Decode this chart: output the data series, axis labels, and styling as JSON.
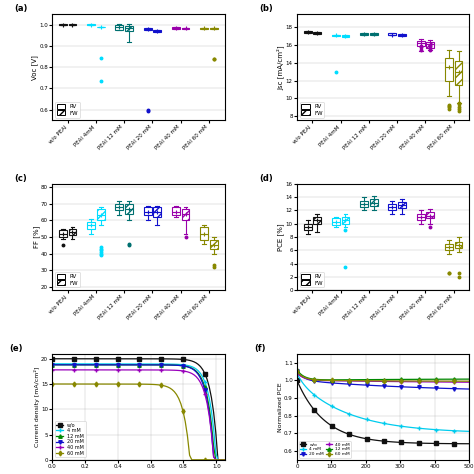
{
  "categories": [
    "w/o PEAI",
    "PEAI 4mM",
    "PEAI 12 mM",
    "PEAI 20 mM",
    "PEAI 40 mM",
    "PEAI 60 mM"
  ],
  "colors": [
    "#111111",
    "#00DDFF",
    "#007070",
    "#1111CC",
    "#9900AA",
    "#888800"
  ],
  "voc": {
    "ylabel": "Voc [V]",
    "ylim": [
      0.55,
      1.05
    ],
    "yticks": [
      0.6,
      0.7,
      0.8,
      0.9,
      1.0
    ],
    "rv_medians": [
      1.0,
      1.0,
      0.99,
      0.98,
      0.985,
      0.984
    ],
    "rv_q1": [
      0.998,
      0.998,
      0.975,
      0.975,
      0.982,
      0.982
    ],
    "rv_q3": [
      1.002,
      1.002,
      1.0,
      0.985,
      0.988,
      0.986
    ],
    "rv_whislo": [
      0.998,
      0.998,
      0.975,
      0.975,
      0.982,
      0.982
    ],
    "rv_whishi": [
      1.002,
      1.002,
      1.005,
      0.985,
      0.988,
      0.986
    ],
    "rv_fliers": [
      [],
      [],
      [],
      [
        0.6,
        0.595
      ],
      [],
      []
    ],
    "fw_medians": [
      1.0,
      0.99,
      0.985,
      0.97,
      0.983,
      0.983
    ],
    "fw_q1": [
      0.998,
      0.988,
      0.97,
      0.965,
      0.98,
      0.98
    ],
    "fw_q3": [
      1.002,
      0.992,
      0.995,
      0.975,
      0.986,
      0.986
    ],
    "fw_whislo": [
      0.998,
      0.988,
      0.92,
      0.965,
      0.98,
      0.98
    ],
    "fw_whishi": [
      1.002,
      0.992,
      1.005,
      0.975,
      0.986,
      0.986
    ],
    "fw_fliers": [
      [],
      [
        0.735,
        0.845
      ],
      [],
      [],
      [],
      [
        0.84,
        0.84
      ]
    ]
  },
  "jsc": {
    "ylabel": "Jsc [mA/cm²]",
    "ylim": [
      7.5,
      19.5
    ],
    "yticks": [
      8,
      10,
      12,
      14,
      16,
      18
    ],
    "rv_medians": [
      17.5,
      17.1,
      17.3,
      17.2,
      16.2,
      13.5
    ],
    "rv_q1": [
      17.4,
      17.0,
      17.2,
      17.1,
      15.9,
      12.0
    ],
    "rv_q3": [
      17.6,
      17.2,
      17.4,
      17.35,
      16.5,
      14.5
    ],
    "rv_whislo": [
      17.4,
      17.0,
      17.2,
      17.1,
      15.3,
      10.2
    ],
    "rv_whishi": [
      17.6,
      17.2,
      17.4,
      17.35,
      16.7,
      15.5
    ],
    "rv_fliers": [
      [],
      [
        13.0
      ],
      [],
      [],
      [
        15.8,
        15.5,
        15.9
      ],
      [
        8.8,
        9.0,
        9.1,
        9.2
      ]
    ],
    "fw_medians": [
      17.4,
      17.0,
      17.25,
      17.15,
      16.1,
      13.0
    ],
    "fw_q1": [
      17.3,
      16.9,
      17.1,
      17.0,
      15.7,
      11.5
    ],
    "fw_q3": [
      17.5,
      17.1,
      17.35,
      17.3,
      16.4,
      14.2
    ],
    "fw_whislo": [
      17.3,
      16.9,
      17.1,
      17.0,
      15.4,
      9.5
    ],
    "fw_whishi": [
      17.5,
      17.1,
      17.35,
      17.3,
      16.6,
      15.3
    ],
    "fw_fliers": [
      [],
      [],
      [],
      [],
      [
        15.7,
        15.9,
        16.0,
        15.5
      ],
      [
        8.5,
        9.0,
        8.8,
        9.3,
        9.5
      ]
    ]
  },
  "ff": {
    "ylabel": "FF [%]",
    "ylim": [
      18,
      82
    ],
    "yticks": [
      20,
      30,
      40,
      50,
      60,
      70,
      80
    ],
    "rv_medians": [
      52,
      57,
      68,
      65,
      65,
      52
    ],
    "rv_q1": [
      50,
      55,
      66,
      63,
      63,
      48
    ],
    "rv_q3": [
      54,
      59,
      70,
      68,
      68,
      56
    ],
    "rv_whislo": [
      49,
      52,
      63,
      60,
      62,
      46
    ],
    "rv_whishi": [
      55,
      61,
      72,
      69,
      69,
      57
    ],
    "rv_fliers": [
      [
        45
      ],
      [],
      [],
      [],
      [],
      []
    ],
    "fw_medians": [
      53,
      63,
      67,
      65,
      64,
      45
    ],
    "fw_q1": [
      51,
      60,
      64,
      62,
      60,
      43
    ],
    "fw_q3": [
      55,
      67,
      70,
      68,
      67,
      48
    ],
    "fw_whislo": [
      49,
      57,
      60,
      57,
      52,
      40
    ],
    "fw_whishi": [
      56,
      68,
      72,
      69,
      68,
      50
    ],
    "fw_fliers": [
      [],
      [
        39,
        41,
        42,
        43,
        44,
        40
      ],
      [
        45,
        46
      ],
      [],
      [
        50
      ],
      [
        33,
        32
      ]
    ]
  },
  "pce": {
    "ylabel": "PCE [%]",
    "ylim": [
      0,
      16
    ],
    "yticks": [
      0,
      2,
      4,
      6,
      8,
      10,
      12,
      14,
      16
    ],
    "rv_medians": [
      9.5,
      10.3,
      13.0,
      12.5,
      11.0,
      6.5
    ],
    "rv_q1": [
      9.0,
      9.8,
      12.5,
      12.0,
      10.5,
      6.0
    ],
    "rv_q3": [
      10.0,
      10.8,
      13.5,
      13.0,
      11.5,
      7.0
    ],
    "rv_whislo": [
      8.5,
      9.5,
      12.0,
      11.5,
      10.0,
      5.5
    ],
    "rv_whishi": [
      10.5,
      11.0,
      14.0,
      13.5,
      12.0,
      7.5
    ],
    "rv_fliers": [
      [],
      [],
      [],
      [],
      [],
      [
        2.5,
        2.5
      ]
    ],
    "fw_medians": [
      10.5,
      10.5,
      13.2,
      12.8,
      11.2,
      6.8
    ],
    "fw_q1": [
      10.0,
      10.0,
      12.7,
      12.3,
      10.8,
      6.3
    ],
    "fw_q3": [
      11.0,
      11.0,
      13.8,
      13.3,
      11.8,
      7.3
    ],
    "fw_whislo": [
      8.8,
      9.5,
      12.0,
      11.5,
      10.0,
      5.8
    ],
    "fw_whishi": [
      11.5,
      11.5,
      14.2,
      13.8,
      12.2,
      8.0
    ],
    "fw_fliers": [
      [],
      [
        3.5,
        9.0
      ],
      [],
      [],
      [
        9.5
      ],
      [
        2.0,
        2.5
      ]
    ]
  },
  "jv_colors": [
    "#111111",
    "#00CCEE",
    "#008800",
    "#1111CC",
    "#9900BB",
    "#888800"
  ],
  "jv_labels": [
    "w/o",
    "4 mM",
    "12 mM",
    "20 mM",
    "40 mM",
    "60 mM"
  ],
  "jv_markers": [
    "s",
    "+",
    "^",
    "v",
    "+",
    "d"
  ],
  "norm_pce_labels": [
    "w/o",
    "4 mM",
    "20 mM",
    "40 mM",
    "12 mM",
    "60 mM"
  ],
  "norm_pce_colors": [
    "#111111",
    "#00CCEE",
    "#1111CC",
    "#9900BB",
    "#008800",
    "#888800"
  ]
}
